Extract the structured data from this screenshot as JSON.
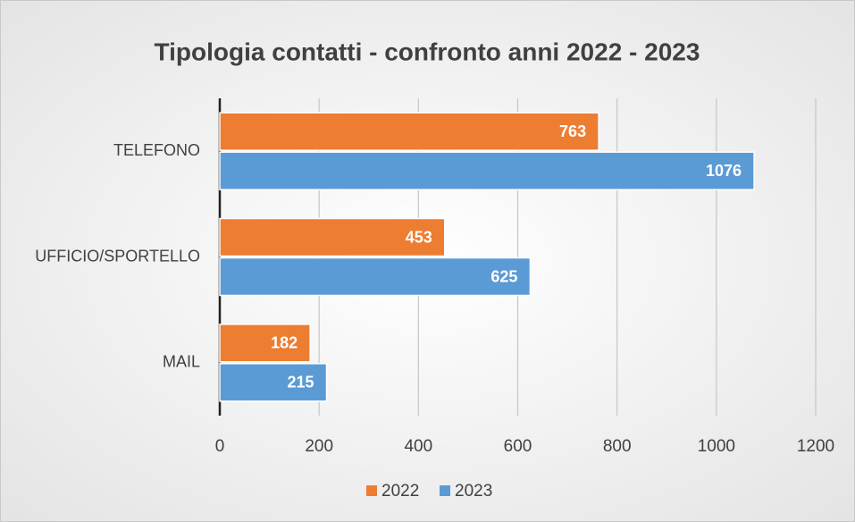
{
  "chart_data": {
    "type": "hbar",
    "title": "Tipologia contatti - confronto anni 2022 - 2023",
    "categories": [
      "TELEFONO",
      "UFFICIO/SPORTELLO",
      "MAIL"
    ],
    "series": [
      {
        "name": "2022",
        "color": "#ed7d31",
        "values": [
          763,
          453,
          182
        ]
      },
      {
        "name": "2023",
        "color": "#5b9bd5",
        "values": [
          1076,
          625,
          215
        ]
      }
    ],
    "xlim": [
      0,
      1200
    ],
    "xticks": [
      0,
      200,
      400,
      600,
      800,
      1000,
      1200
    ],
    "grid": true,
    "legend": "bottom"
  }
}
